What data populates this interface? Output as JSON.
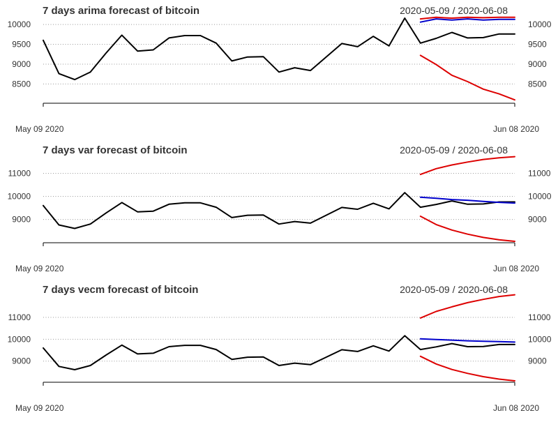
{
  "chart_data": [
    {
      "type": "line",
      "title": "7 days arima forecast of bitcoin",
      "date_range": "2020-05-09 / 2020-06-08",
      "x_start_label": "May 09 2020",
      "x_end_label": "Jun 08 2020",
      "yticks": [
        8500,
        9000,
        9500,
        10000
      ],
      "ylim": [
        8050,
        10230
      ],
      "colors": {
        "actual": "#000000",
        "forecast": "#0000cc",
        "bounds": "#dd0000"
      },
      "series": [
        {
          "name": "actual",
          "x_start": 0,
          "values": [
            9600,
            8760,
            8610,
            8800,
            9280,
            9730,
            9330,
            9360,
            9660,
            9720,
            9720,
            9530,
            9080,
            9180,
            9190,
            8800,
            8910,
            8840,
            9180,
            9520,
            9440,
            9700,
            9460,
            10160,
            9530,
            9650,
            9800,
            9660,
            9670,
            9760,
            9760
          ]
        },
        {
          "name": "forecast",
          "x_start": 24,
          "values": [
            10060,
            10140,
            10110,
            10140,
            10110,
            10130,
            10130
          ]
        },
        {
          "name": "upper",
          "x_start": 24,
          "values": [
            10140,
            10180,
            10160,
            10180,
            10170,
            10180,
            10180
          ]
        },
        {
          "name": "lower",
          "x_start": 24,
          "values": [
            9220,
            8990,
            8720,
            8560,
            8370,
            8250,
            8100
          ]
        }
      ]
    },
    {
      "type": "line",
      "title": "7 days var forecast of bitcoin",
      "date_range": "2020-05-09 / 2020-06-08",
      "x_start_label": "May 09 2020",
      "x_end_label": "Jun 08 2020",
      "yticks": [
        9000,
        10000,
        11000
      ],
      "ylim": [
        8050,
        11800
      ],
      "colors": {
        "actual": "#000000",
        "forecast": "#0000cc",
        "bounds": "#dd0000"
      },
      "series": [
        {
          "name": "actual",
          "x_start": 0,
          "values": [
            9600,
            8760,
            8610,
            8800,
            9280,
            9730,
            9330,
            9360,
            9660,
            9720,
            9720,
            9530,
            9080,
            9180,
            9190,
            8800,
            8910,
            8840,
            9180,
            9520,
            9440,
            9700,
            9460,
            10160,
            9530,
            9650,
            9800,
            9660,
            9670,
            9760,
            9760
          ]
        },
        {
          "name": "forecast",
          "x_start": 24,
          "values": [
            9960,
            9920,
            9860,
            9830,
            9780,
            9740,
            9710
          ]
        },
        {
          "name": "upper",
          "x_start": 24,
          "values": [
            10950,
            11200,
            11360,
            11490,
            11600,
            11670,
            11720
          ]
        },
        {
          "name": "lower",
          "x_start": 24,
          "values": [
            9140,
            8780,
            8540,
            8360,
            8220,
            8120,
            8050
          ]
        }
      ]
    },
    {
      "type": "line",
      "title": "7 days vecm forecast of bitcoin",
      "date_range": "2020-05-09 / 2020-06-08",
      "x_start_label": "May 09 2020",
      "x_end_label": "Jun 08 2020",
      "yticks": [
        9000,
        10000,
        11000
      ],
      "ylim": [
        8100,
        12050
      ],
      "colors": {
        "actual": "#000000",
        "forecast": "#0000cc",
        "bounds": "#dd0000"
      },
      "series": [
        {
          "name": "actual",
          "x_start": 0,
          "values": [
            9600,
            8760,
            8610,
            8800,
            9280,
            9730,
            9330,
            9360,
            9660,
            9720,
            9720,
            9530,
            9080,
            9180,
            9190,
            8800,
            8910,
            8840,
            9180,
            9520,
            9440,
            9700,
            9460,
            10160,
            9530,
            9650,
            9800,
            9660,
            9670,
            9760,
            9760
          ]
        },
        {
          "name": "forecast",
          "x_start": 24,
          "values": [
            10020,
            9990,
            9960,
            9930,
            9910,
            9890,
            9870
          ]
        },
        {
          "name": "upper",
          "x_start": 24,
          "values": [
            10970,
            11270,
            11480,
            11670,
            11820,
            11950,
            12030
          ]
        },
        {
          "name": "lower",
          "x_start": 24,
          "values": [
            9220,
            8870,
            8620,
            8440,
            8290,
            8180,
            8100
          ]
        }
      ]
    }
  ]
}
